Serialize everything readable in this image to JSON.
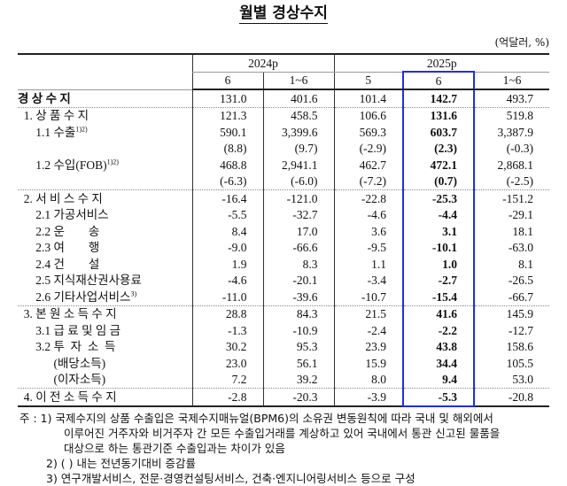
{
  "title": "월별 경상수지",
  "unit": "(억달러, %)",
  "years": [
    "2024p",
    "2025p"
  ],
  "months": [
    "6",
    "1~6",
    "5",
    "6",
    "1~6"
  ],
  "highlight_color": "#1f2fe0",
  "rows": [
    {
      "label": "경 상 수 지",
      "sup": "",
      "vals": [
        "131.0",
        "401.6",
        "101.4",
        "142.7",
        "493.7"
      ]
    },
    {
      "label": "  1. 상 품 수 지",
      "sup": "",
      "vals": [
        "121.3",
        "458.5",
        "106.6",
        "131.6",
        "519.8"
      ]
    },
    {
      "label": "      1.1 수출",
      "sup": "1)2)",
      "vals": [
        "590.1",
        "3,399.6",
        "569.3",
        "603.7",
        "3,387.9"
      ]
    },
    {
      "label": "",
      "sup": "",
      "vals": [
        "(8.8)",
        "(9.7)",
        "(-2.9)",
        "(2.3)",
        "(-0.3)"
      ]
    },
    {
      "label": "      1.2 수입(FOB)",
      "sup": "1)2)",
      "vals": [
        "468.8",
        "2,941.1",
        "462.7",
        "472.1",
        "2,868.1"
      ]
    },
    {
      "label": "",
      "sup": "",
      "vals": [
        "(-6.3)",
        "(-6.0)",
        "(-7.2)",
        "(0.7)",
        "(-2.5)"
      ]
    },
    {
      "label": "  2. 서 비 스 수 지",
      "sup": "",
      "vals": [
        "-16.4",
        "-121.0",
        "-22.8",
        "-25.3",
        "-151.2"
      ]
    },
    {
      "label": "      2.1 가공서비스",
      "sup": "",
      "vals": [
        "-5.5",
        "-32.7",
        "-4.6",
        "-4.4",
        "-29.1"
      ]
    },
    {
      "label": "      2.2 운        송",
      "sup": "",
      "vals": [
        "8.4",
        "17.0",
        "3.6",
        "3.1",
        "18.1"
      ]
    },
    {
      "label": "      2.3 여        행",
      "sup": "",
      "vals": [
        "-9.0",
        "-66.6",
        "-9.5",
        "-10.1",
        "-63.0"
      ]
    },
    {
      "label": "      2.4 건        설",
      "sup": "",
      "vals": [
        "1.9",
        "8.3",
        "1.1",
        "1.0",
        "8.1"
      ]
    },
    {
      "label": "      2.5 지식재산권사용료",
      "sup": "",
      "vals": [
        "-4.6",
        "-20.1",
        "-3.4",
        "-2.7",
        "-26.5"
      ]
    },
    {
      "label": "      2.6 기타사업서비스",
      "sup": "3)",
      "vals": [
        "-11.0",
        "-39.6",
        "-10.7",
        "-15.4",
        "-66.7"
      ]
    },
    {
      "label": "  3. 본 원 소 득 수 지",
      "sup": "",
      "vals": [
        "28.8",
        "84.3",
        "21.5",
        "41.6",
        "145.9"
      ]
    },
    {
      "label": "      3.1 급 료 및 임 금",
      "sup": "",
      "vals": [
        "-1.3",
        "-10.9",
        "-2.4",
        "-2.2",
        "-12.7"
      ]
    },
    {
      "label": "      3.2 투  자  소  득",
      "sup": "",
      "vals": [
        "30.2",
        "95.3",
        "23.9",
        "43.8",
        "158.6"
      ]
    },
    {
      "label": "            (배당소득)",
      "sup": "",
      "vals": [
        "23.0",
        "56.1",
        "15.9",
        "34.4",
        "105.5"
      ]
    },
    {
      "label": "            (이자소득)",
      "sup": "",
      "vals": [
        "7.2",
        "39.2",
        "8.0",
        "9.4",
        "53.0"
      ]
    },
    {
      "label": "  4. 이 전 소 득 수 지",
      "sup": "",
      "vals": [
        "-2.8",
        "-20.3",
        "-3.9",
        "-5.3",
        "-20.8"
      ]
    }
  ],
  "notes": [
    "주 : 1) 국제수지의 상품 수출입은 국제수지매뉴얼(BPM6)의 소유권 변동원칙에 따라 국내 및 해외에서",
    "이루어진 거주자와 비거주자 간 모든 수출입거래를 계상하고 있어 국내에서 통관 신고된 물품을",
    "대상으로 하는 통관기준 수출입과는 차이가 있음",
    "2) (   ) 내는 전년동기대비 증감률",
    "3) 연구개발서비스, 전문·경영컨설팅서비스, 건축·엔지니어링서비스 등으로 구성"
  ]
}
